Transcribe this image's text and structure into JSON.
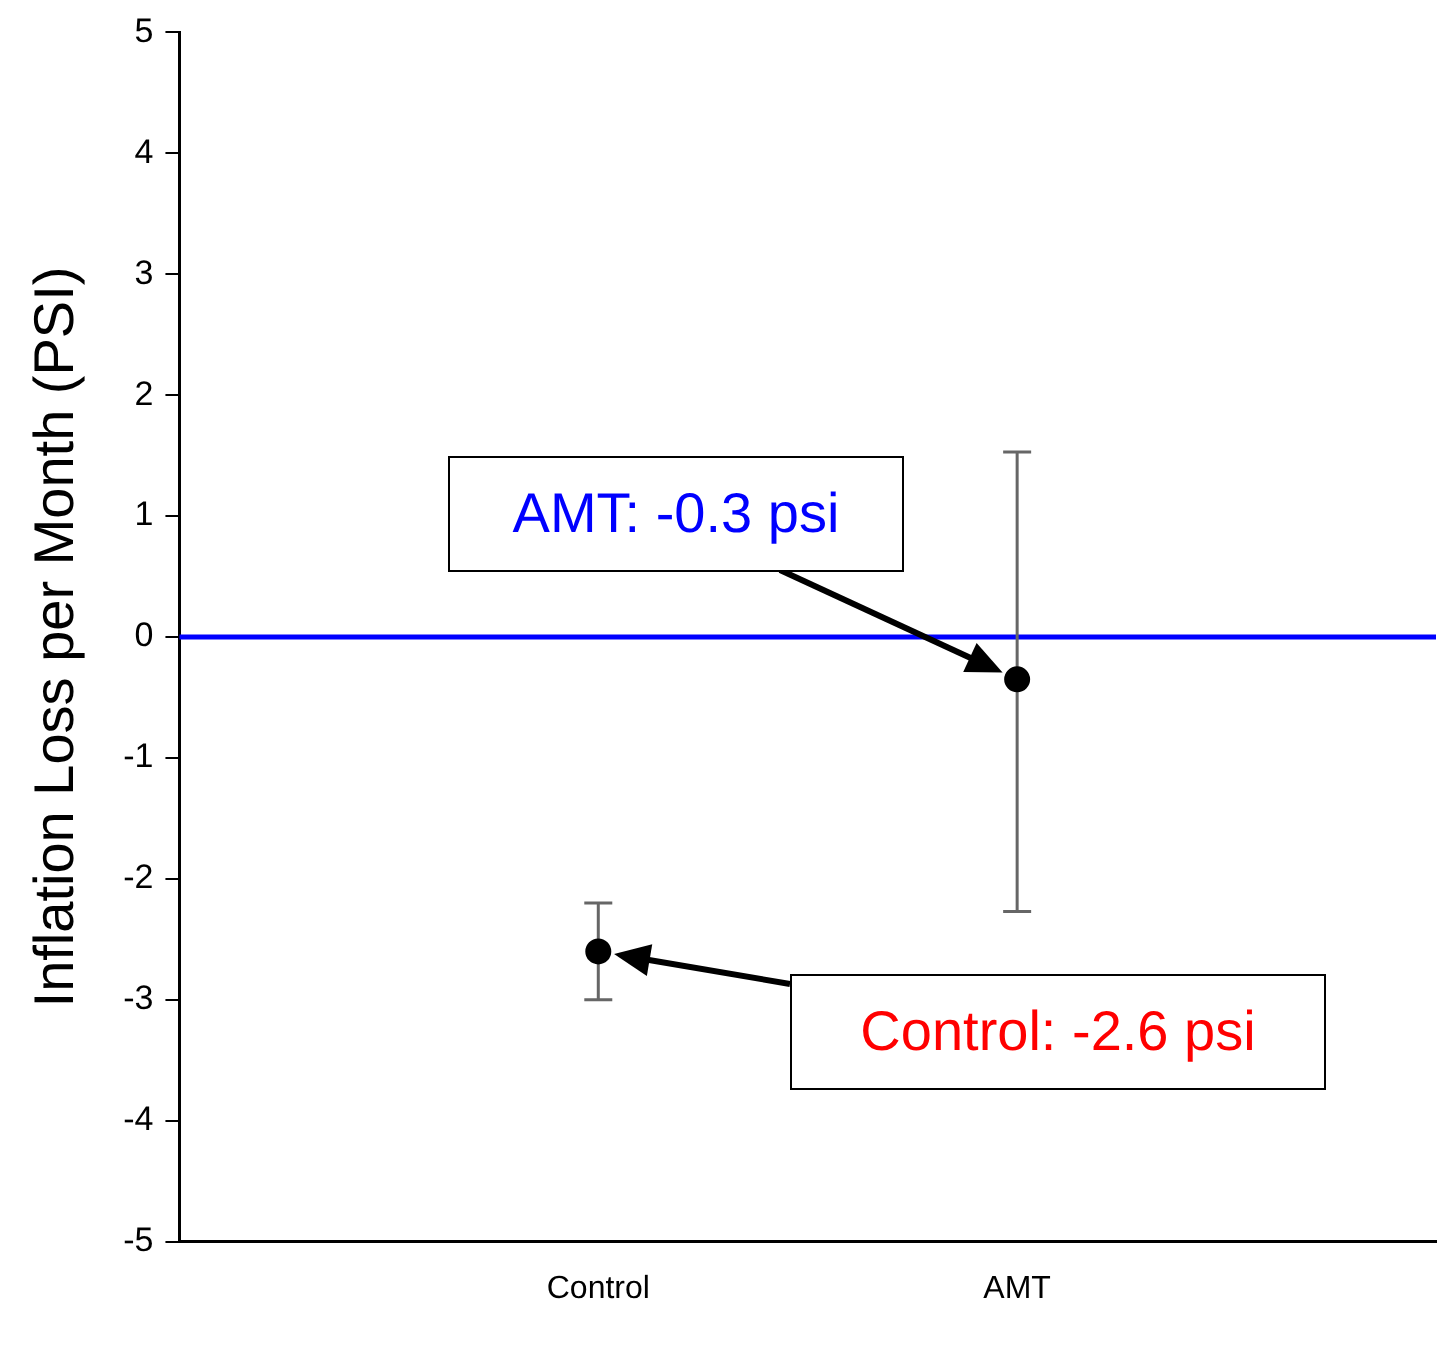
{
  "chart_data": {
    "type": "scatter",
    "ylabel": "Inflation Loss per Month (PSI)",
    "categories": [
      "Control",
      "AMT"
    ],
    "series": [
      {
        "color": "#000000",
        "values": [
          -2.6,
          -0.35
        ],
        "errors": [
          [
            -3.0,
            -2.2
          ],
          [
            -2.27,
            1.53
          ]
        ]
      }
    ],
    "ylim": [
      -5,
      5
    ],
    "yticks": [
      -5,
      -4,
      -3,
      -2,
      -1,
      0,
      1,
      2,
      3,
      4,
      5
    ],
    "ref_lines": [
      {
        "axis": "y",
        "value": 0,
        "color": "#0000ff"
      }
    ],
    "annotations": [
      "AMT: -0.3 psi",
      "Control: -2.6 psi"
    ],
    "marker": "circle",
    "grid": false,
    "legend": false
  }
}
